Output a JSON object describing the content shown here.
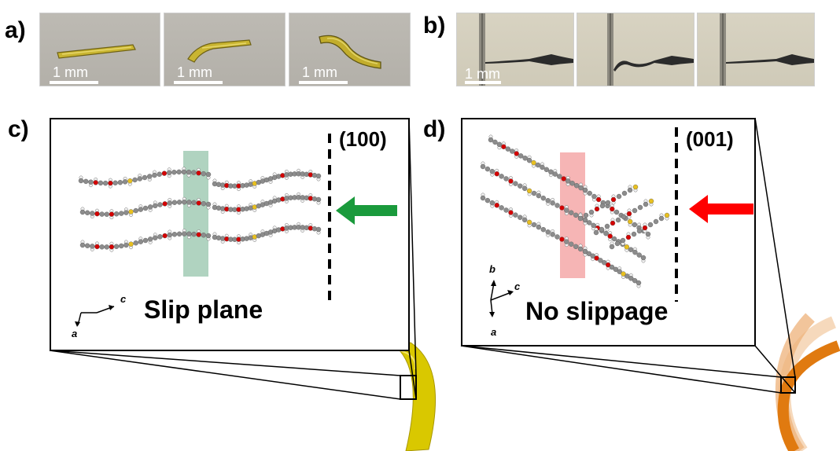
{
  "panels": {
    "a": {
      "letter": "a)",
      "scale_labels": [
        "1 mm",
        "1 mm",
        "1 mm"
      ]
    },
    "b": {
      "letter": "b)",
      "scale_labels": [
        "1 mm"
      ]
    },
    "c": {
      "letter": "c)",
      "plane": "(100)",
      "caption": "Slip plane",
      "axes": {
        "horizontal": "c",
        "vertical": "a"
      },
      "arrow_color": "#1a9a3c",
      "band_color": "#9cc8b0",
      "crystal_color": "#d9c800"
    },
    "d": {
      "letter": "d)",
      "plane": "(001)",
      "caption": "No slippage",
      "axes": {
        "up": "b",
        "right": "c",
        "down": "a"
      },
      "arrow_color": "#ff0000",
      "band_color": "#f5a8a8",
      "crystal_color": "#e07a10"
    }
  },
  "atom_colors": {
    "carbon": "#8c8c8c",
    "hydrogen": "#f2f2f2",
    "oxygen": "#d40000",
    "sulfur": "#e8c020",
    "nitrogen": "#5a6fd8"
  }
}
